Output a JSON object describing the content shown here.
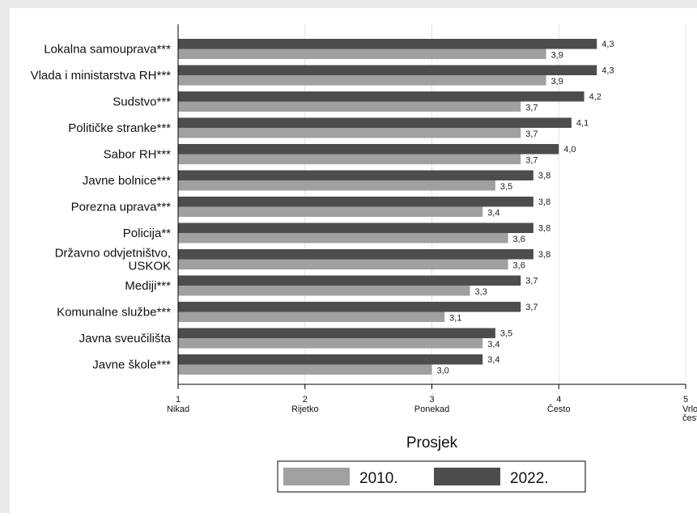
{
  "chart_data": {
    "type": "bar",
    "orientation": "horizontal",
    "categories": [
      "Lokalna samouprava***",
      "Vlada i ministarstva RH***",
      "Sudstvo***",
      "Političke stranke***",
      "Sabor RH***",
      "Javne bolnice***",
      "Porezna uprava***",
      "Policija**",
      "Državno odvjetništvo,\nUSKOK",
      "Mediji***",
      "Komunalne službe***",
      "Javna sveučilišta",
      "Javne škole***"
    ],
    "series": [
      {
        "name": "2022.",
        "color": "#4d4d4d",
        "values": [
          4.3,
          4.3,
          4.2,
          4.1,
          4.0,
          3.8,
          3.8,
          3.8,
          3.8,
          3.7,
          3.7,
          3.5,
          3.4
        ],
        "value_labels": [
          "4,3",
          "4,3",
          "4,2",
          "4,1",
          "4,0",
          "3,8",
          "3,8",
          "3,8",
          "3,8",
          "3,7",
          "3,7",
          "3,5",
          "3,4"
        ]
      },
      {
        "name": "2010.",
        "color": "#a0a0a0",
        "values": [
          3.9,
          3.9,
          3.7,
          3.7,
          3.7,
          3.5,
          3.4,
          3.6,
          3.6,
          3.3,
          3.1,
          3.4,
          3.0
        ],
        "value_labels": [
          "3,9",
          "3,9",
          "3,7",
          "3,7",
          "3,7",
          "3,5",
          "3,4",
          "3,6",
          "3,6",
          "3,3",
          "3,1",
          "3,4",
          "3,0"
        ]
      }
    ],
    "xlim": [
      1,
      5
    ],
    "xticks": [
      {
        "value": 1,
        "number": "1",
        "label": "Nikad"
      },
      {
        "value": 2,
        "number": "2",
        "label": "Rijetko"
      },
      {
        "value": 3,
        "number": "3",
        "label": "Ponekad"
      },
      {
        "value": 4,
        "number": "4",
        "label": "Često"
      },
      {
        "value": 5,
        "number": "5",
        "label": "Vrlo\nčesto"
      }
    ],
    "xlabel": "Prosjek",
    "ylabel": "",
    "title": "",
    "grid": true,
    "legend": {
      "position": "bottom",
      "order": [
        "2010.",
        "2022."
      ]
    }
  },
  "colors": {
    "outer_background": "#eaeaea",
    "plot_background": "#ffffff",
    "grid": "#e3e3e3",
    "axis": "#000000"
  }
}
